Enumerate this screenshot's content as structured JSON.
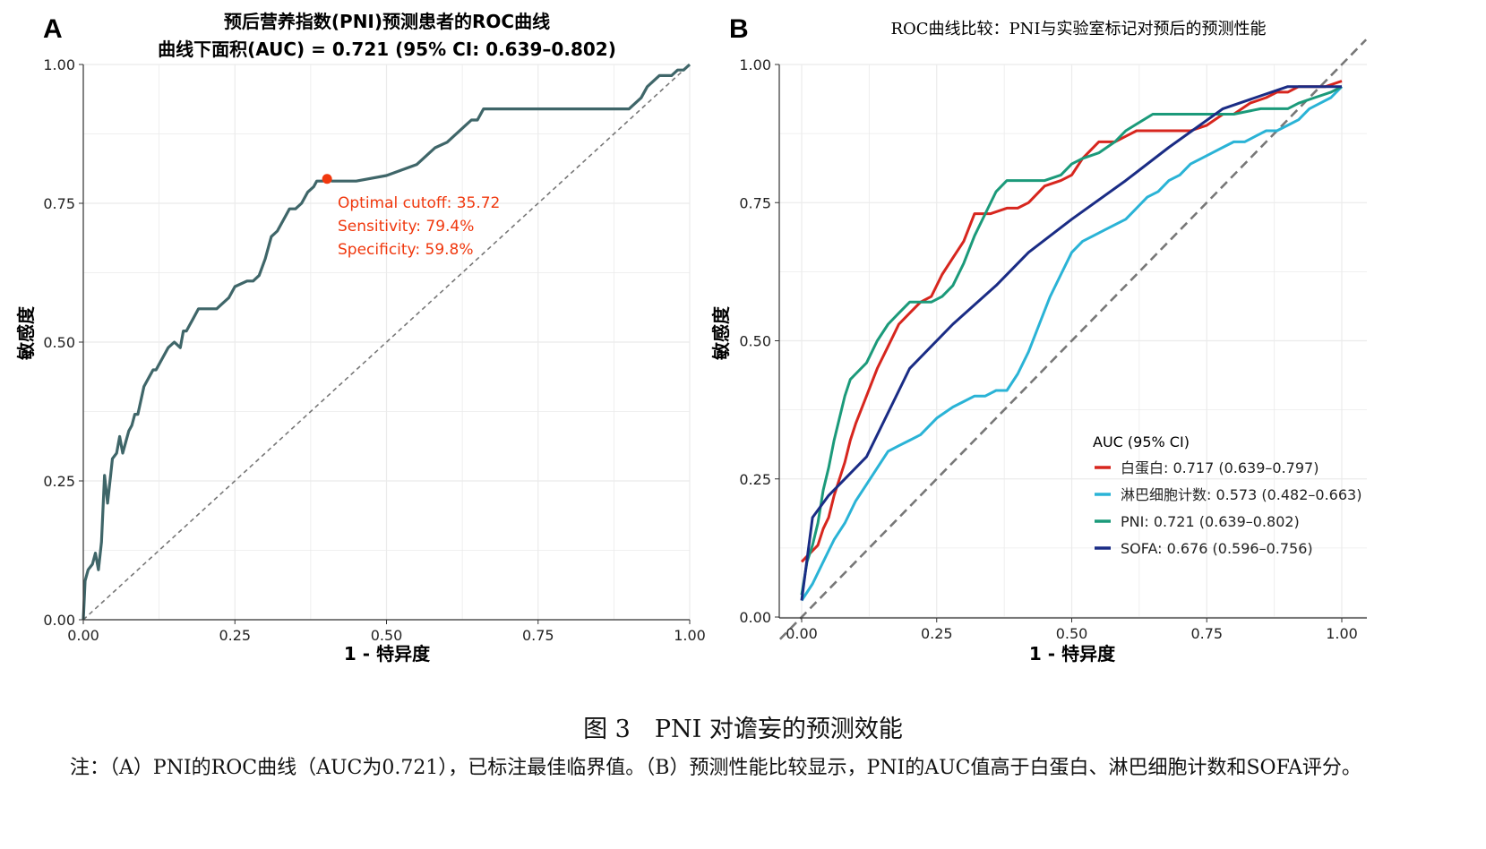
{
  "panels": {
    "A": {
      "letter": "A",
      "title_line1": "预后营养指数(PNI)预测患者的ROC曲线",
      "title_line2": "曲线下面积(AUC) = 0.721 (95% CI: 0.639–0.802)",
      "annotation": [
        "Optimal cutoff: 35.72",
        "Sensitivity: 79.4%",
        "Specificity: 59.8%"
      ]
    },
    "B": {
      "letter": "B",
      "title": "ROC曲线比较：PNI与实验室标记对预后的预测性能",
      "legend_title": "AUC (95% CI)"
    }
  },
  "caption": "图 3　PNI 对谵妄的预测效能",
  "note": "注：（A）PNI的ROC曲线（AUC为0.721），已标注最佳临界值。（B）预测性能比较显示，PNI的AUC值高于白蛋白、淋巴细胞计数和SOFA评分。",
  "colors": {
    "pni_a": "#3f6669",
    "cutoff": "#f0380e",
    "albumin": "#d7261e",
    "lymphocyte": "#2ab3d6",
    "pni": "#1b9a7a",
    "sofa": "#1a2c85",
    "grid": "#ebebeb",
    "diagonal": "#777777"
  },
  "chart_data": [
    {
      "type": "line",
      "panel": "A",
      "title": "预后营养指数(PNI)预测患者的ROC曲线",
      "subtitle": "曲线下面积(AUC) = 0.721 (95% CI: 0.639–0.802)",
      "xlabel": "1 - 特异度",
      "ylabel": "敏感度",
      "xlim": [
        0,
        1
      ],
      "ylim": [
        0,
        1
      ],
      "xticks": [
        "0.00",
        "0.25",
        "0.50",
        "0.75",
        "1.00"
      ],
      "yticks": [
        "0.00",
        "0.25",
        "0.50",
        "0.75",
        "1.00"
      ],
      "grid": true,
      "reference_line": "diagonal",
      "cutoff_point": {
        "x": 0.402,
        "y": 0.794,
        "cutoff": 35.72,
        "sensitivity": 0.794,
        "specificity": 0.598
      },
      "series": [
        {
          "color_key": "pni_a",
          "x": [
            0,
            0.003,
            0.008,
            0.015,
            0.02,
            0.025,
            0.03,
            0.035,
            0.04,
            0.045,
            0.048,
            0.055,
            0.06,
            0.065,
            0.07,
            0.075,
            0.08,
            0.085,
            0.09,
            0.1,
            0.105,
            0.11,
            0.115,
            0.12,
            0.125,
            0.13,
            0.14,
            0.15,
            0.16,
            0.165,
            0.17,
            0.175,
            0.18,
            0.19,
            0.2,
            0.21,
            0.215,
            0.22,
            0.23,
            0.24,
            0.25,
            0.27,
            0.28,
            0.29,
            0.3,
            0.31,
            0.32,
            0.33,
            0.34,
            0.35,
            0.36,
            0.37,
            0.38,
            0.385,
            0.39,
            0.395,
            0.4,
            0.402,
            0.41,
            0.45,
            0.5,
            0.55,
            0.56,
            0.57,
            0.58,
            0.6,
            0.61,
            0.62,
            0.63,
            0.64,
            0.65,
            0.66,
            0.67,
            0.7,
            0.8,
            0.9,
            0.92,
            0.93,
            0.94,
            0.95,
            0.96,
            0.97,
            0.98,
            0.99,
            1.0
          ],
          "y": [
            0,
            0.07,
            0.09,
            0.1,
            0.12,
            0.09,
            0.14,
            0.26,
            0.21,
            0.26,
            0.29,
            0.3,
            0.33,
            0.3,
            0.32,
            0.34,
            0.35,
            0.37,
            0.37,
            0.42,
            0.43,
            0.44,
            0.45,
            0.45,
            0.46,
            0.47,
            0.49,
            0.5,
            0.49,
            0.52,
            0.52,
            0.53,
            0.54,
            0.56,
            0.56,
            0.56,
            0.56,
            0.56,
            0.57,
            0.58,
            0.6,
            0.61,
            0.61,
            0.62,
            0.65,
            0.69,
            0.7,
            0.72,
            0.74,
            0.74,
            0.75,
            0.77,
            0.78,
            0.79,
            0.79,
            0.79,
            0.794,
            0.794,
            0.79,
            0.79,
            0.8,
            0.82,
            0.83,
            0.84,
            0.85,
            0.86,
            0.87,
            0.88,
            0.89,
            0.9,
            0.9,
            0.92,
            0.92,
            0.92,
            0.92,
            0.92,
            0.94,
            0.96,
            0.97,
            0.98,
            0.98,
            0.98,
            0.99,
            0.99,
            1.0
          ]
        }
      ]
    },
    {
      "type": "line",
      "panel": "B",
      "title": "ROC曲线比较：PNI与实验室标记对预后的预测性能",
      "xlabel": "1 - 特异度",
      "ylabel": "敏感度",
      "xlim": [
        0,
        1
      ],
      "ylim": [
        0,
        1
      ],
      "xticks": [
        "0.00",
        "0.25",
        "0.50",
        "0.75",
        "1.00"
      ],
      "yticks": [
        "0.00",
        "0.25",
        "0.50",
        "0.75",
        "1.00"
      ],
      "grid": true,
      "reference_line": "diagonal",
      "legend": {
        "title": "AUC (95% CI)",
        "position": "right"
      },
      "series": [
        {
          "name": "白蛋白: 0.717 (0.639–0.797)",
          "color_key": "albumin",
          "x": [
            0,
            0.01,
            0.02,
            0.03,
            0.04,
            0.05,
            0.06,
            0.07,
            0.08,
            0.09,
            0.1,
            0.12,
            0.14,
            0.16,
            0.18,
            0.2,
            0.22,
            0.24,
            0.26,
            0.28,
            0.3,
            0.32,
            0.35,
            0.38,
            0.4,
            0.42,
            0.45,
            0.48,
            0.5,
            0.52,
            0.55,
            0.58,
            0.6,
            0.62,
            0.65,
            0.68,
            0.7,
            0.72,
            0.75,
            0.78,
            0.8,
            0.83,
            0.86,
            0.88,
            0.9,
            0.92,
            0.95,
            0.97,
            1.0
          ],
          "y": [
            0.1,
            0.11,
            0.12,
            0.13,
            0.16,
            0.18,
            0.22,
            0.25,
            0.28,
            0.32,
            0.35,
            0.4,
            0.45,
            0.49,
            0.53,
            0.55,
            0.57,
            0.58,
            0.62,
            0.65,
            0.68,
            0.73,
            0.73,
            0.74,
            0.74,
            0.75,
            0.78,
            0.79,
            0.8,
            0.83,
            0.86,
            0.86,
            0.87,
            0.88,
            0.88,
            0.88,
            0.88,
            0.88,
            0.89,
            0.91,
            0.91,
            0.93,
            0.94,
            0.95,
            0.95,
            0.96,
            0.96,
            0.96,
            0.97
          ]
        },
        {
          "name": "淋巴细胞计数: 0.573 (0.482–0.663)",
          "color_key": "lymphocyte",
          "x": [
            0,
            0.02,
            0.04,
            0.05,
            0.06,
            0.08,
            0.1,
            0.12,
            0.14,
            0.16,
            0.18,
            0.2,
            0.22,
            0.25,
            0.28,
            0.3,
            0.32,
            0.34,
            0.36,
            0.38,
            0.4,
            0.42,
            0.44,
            0.46,
            0.48,
            0.5,
            0.52,
            0.54,
            0.56,
            0.58,
            0.6,
            0.62,
            0.64,
            0.66,
            0.68,
            0.7,
            0.72,
            0.74,
            0.76,
            0.78,
            0.8,
            0.82,
            0.84,
            0.86,
            0.88,
            0.9,
            0.92,
            0.94,
            0.96,
            0.98,
            1.0
          ],
          "y": [
            0.03,
            0.06,
            0.1,
            0.12,
            0.14,
            0.17,
            0.21,
            0.24,
            0.27,
            0.3,
            0.31,
            0.32,
            0.33,
            0.36,
            0.38,
            0.39,
            0.4,
            0.4,
            0.41,
            0.41,
            0.44,
            0.48,
            0.53,
            0.58,
            0.62,
            0.66,
            0.68,
            0.69,
            0.7,
            0.71,
            0.72,
            0.74,
            0.76,
            0.77,
            0.79,
            0.8,
            0.82,
            0.83,
            0.84,
            0.85,
            0.86,
            0.86,
            0.87,
            0.88,
            0.88,
            0.89,
            0.9,
            0.92,
            0.93,
            0.94,
            0.96
          ]
        },
        {
          "name": "PNI: 0.721 (0.639–0.802)",
          "color_key": "pni",
          "x": [
            0,
            0.01,
            0.02,
            0.03,
            0.04,
            0.05,
            0.06,
            0.07,
            0.08,
            0.09,
            0.1,
            0.12,
            0.14,
            0.16,
            0.18,
            0.2,
            0.22,
            0.24,
            0.26,
            0.28,
            0.3,
            0.32,
            0.34,
            0.36,
            0.38,
            0.4,
            0.42,
            0.45,
            0.48,
            0.5,
            0.52,
            0.55,
            0.58,
            0.6,
            0.65,
            0.7,
            0.75,
            0.8,
            0.85,
            0.9,
            0.92,
            0.95,
            0.98,
            1.0
          ],
          "y": [
            0.04,
            0.1,
            0.13,
            0.17,
            0.23,
            0.27,
            0.32,
            0.36,
            0.4,
            0.43,
            0.44,
            0.46,
            0.5,
            0.53,
            0.55,
            0.57,
            0.57,
            0.57,
            0.58,
            0.6,
            0.64,
            0.69,
            0.73,
            0.77,
            0.79,
            0.79,
            0.79,
            0.79,
            0.8,
            0.82,
            0.83,
            0.84,
            0.86,
            0.88,
            0.91,
            0.91,
            0.91,
            0.91,
            0.92,
            0.92,
            0.93,
            0.94,
            0.95,
            0.96
          ]
        },
        {
          "name": "SOFA: 0.676 (0.596–0.756)",
          "color_key": "sofa",
          "x": [
            0,
            0.02,
            0.05,
            0.08,
            0.12,
            0.2,
            0.28,
            0.36,
            0.42,
            0.5,
            0.6,
            0.68,
            0.78,
            0.9,
            1.0
          ],
          "y": [
            0.03,
            0.18,
            0.22,
            0.25,
            0.29,
            0.45,
            0.53,
            0.6,
            0.66,
            0.72,
            0.79,
            0.85,
            0.92,
            0.96,
            0.96
          ]
        }
      ]
    }
  ]
}
